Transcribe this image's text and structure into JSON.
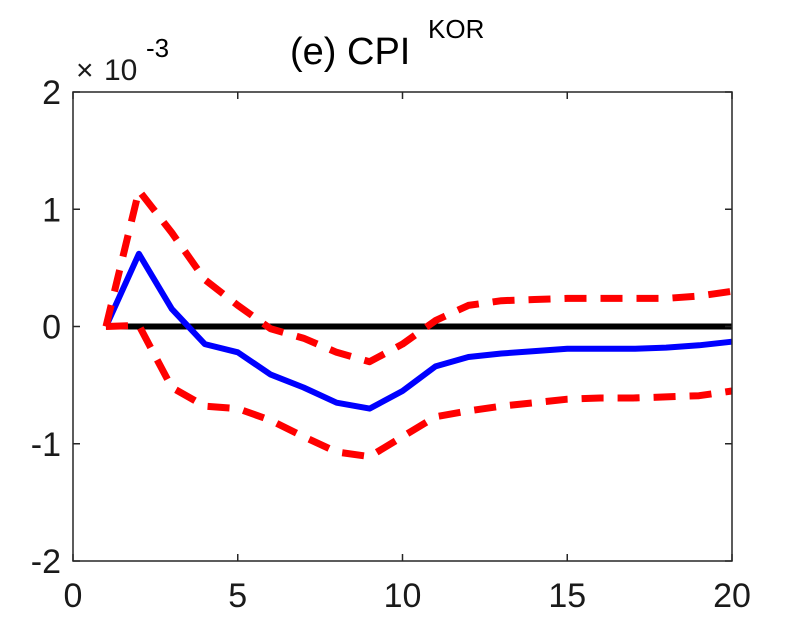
{
  "chart_data": {
    "type": "line",
    "title": "(e) CPI",
    "title_superscript": "KOR",
    "exponent_label": {
      "prefix": "×",
      "base": "10",
      "power": "-3"
    },
    "xlim": [
      0,
      20
    ],
    "ylim": [
      -2,
      2
    ],
    "y_scale_factor": 0.001,
    "x_ticks": [
      0,
      5,
      10,
      15,
      20
    ],
    "x_tick_labels": [
      "0",
      "5",
      "10",
      "15",
      "20"
    ],
    "y_ticks": [
      -2,
      -1,
      0,
      1,
      2
    ],
    "y_tick_labels": [
      "-2",
      "-1",
      "0",
      "1",
      "2"
    ],
    "grid": false,
    "series": [
      {
        "role": "response",
        "color": "#0000ff",
        "style": "solid",
        "x": [
          1,
          2,
          3,
          4,
          5,
          6,
          7,
          8,
          9,
          10,
          11,
          12,
          13,
          14,
          15,
          16,
          17,
          18,
          19,
          20
        ],
        "values": [
          0,
          0.62,
          0.15,
          -0.15,
          -0.22,
          -0.41,
          -0.52,
          -0.65,
          -0.7,
          -0.55,
          -0.34,
          -0.26,
          -0.23,
          -0.21,
          -0.19,
          -0.19,
          -0.19,
          -0.18,
          -0.16,
          -0.13
        ]
      },
      {
        "role": "upper-band",
        "color": "#ff0000",
        "style": "dashed",
        "x": [
          1,
          2,
          3,
          4,
          5,
          6,
          7,
          8,
          9,
          10,
          11,
          12,
          13,
          14,
          15,
          16,
          17,
          18,
          19,
          20
        ],
        "values": [
          0,
          1.16,
          0.8,
          0.4,
          0.18,
          -0.02,
          -0.1,
          -0.22,
          -0.3,
          -0.15,
          0.05,
          0.18,
          0.22,
          0.23,
          0.24,
          0.24,
          0.24,
          0.24,
          0.26,
          0.3
        ]
      },
      {
        "role": "lower-band",
        "color": "#ff0000",
        "style": "dashed",
        "x": [
          1,
          2,
          3,
          4,
          5,
          6,
          7,
          8,
          9,
          10,
          11,
          12,
          13,
          14,
          15,
          16,
          17,
          18,
          19,
          20
        ],
        "values": [
          0,
          0.01,
          -0.52,
          -0.68,
          -0.7,
          -0.8,
          -0.94,
          -1.07,
          -1.11,
          -0.94,
          -0.77,
          -0.72,
          -0.68,
          -0.65,
          -0.62,
          -0.61,
          -0.61,
          -0.6,
          -0.59,
          -0.55
        ]
      }
    ],
    "reference_line": {
      "y": 0,
      "x": [
        1,
        20
      ],
      "color": "#000000"
    }
  }
}
